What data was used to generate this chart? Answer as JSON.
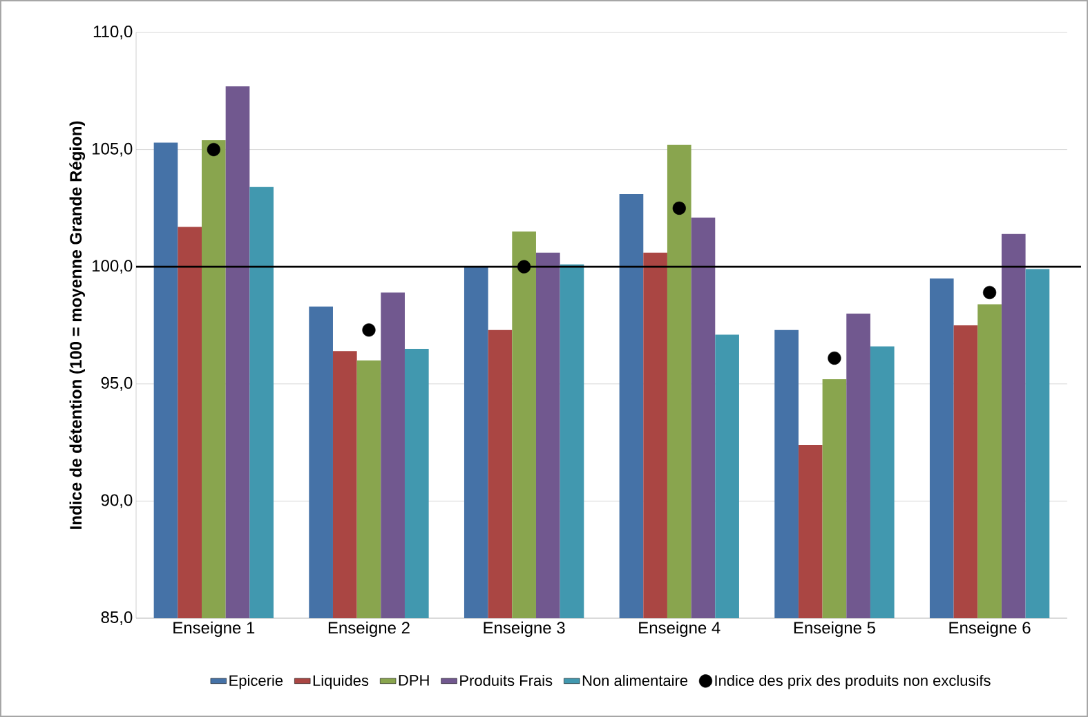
{
  "chart_data": {
    "type": "bar",
    "ylabel": "Indice de détention (100 = moyenne Grande Région)",
    "categories": [
      "Enseigne 1",
      "Enseigne 2",
      "Enseigne 3",
      "Enseigne 4",
      "Enseigne 5",
      "Enseigne 6"
    ],
    "series": [
      {
        "name": "Epicerie",
        "color": "#4572a7",
        "values": [
          105.3,
          98.3,
          100.0,
          103.1,
          97.3,
          99.5
        ]
      },
      {
        "name": "Liquides",
        "color": "#aa4643",
        "values": [
          101.7,
          96.4,
          97.3,
          100.6,
          92.4,
          97.5
        ]
      },
      {
        "name": "DPH",
        "color": "#89a54e",
        "values": [
          105.4,
          96.0,
          101.5,
          105.2,
          95.2,
          98.4
        ]
      },
      {
        "name": "Produits Frais",
        "color": "#71588f",
        "values": [
          107.7,
          98.9,
          100.6,
          102.1,
          98.0,
          101.4
        ]
      },
      {
        "name": "Non alimentaire",
        "color": "#4198af",
        "values": [
          103.4,
          96.5,
          100.1,
          97.1,
          96.6,
          99.9
        ]
      },
      {
        "name": "Indice des prix des produits non exclusifs",
        "type": "scatter",
        "marker": "circle",
        "color": "#000000",
        "x": [
          "Enseigne 1",
          "Enseigne 2",
          "Enseigne 3",
          "Enseigne 4",
          "Enseigne 5",
          "Enseigne 6"
        ],
        "values": [
          105.0,
          97.3,
          100.0,
          102.5,
          96.1,
          98.9
        ]
      }
    ],
    "ylim": [
      85,
      110
    ],
    "yticks": [
      {
        "value": 85,
        "label": "85,0"
      },
      {
        "value": 90,
        "label": "90,0"
      },
      {
        "value": 95,
        "label": "95,0"
      },
      {
        "value": 100,
        "label": "100,0"
      },
      {
        "value": 105,
        "label": "105,0"
      },
      {
        "value": 110,
        "label": "110,0"
      }
    ],
    "ref_lines": [
      {
        "axis": "y",
        "value": 100,
        "color": "#000000"
      }
    ],
    "grid": "y",
    "legend": "bottom"
  }
}
